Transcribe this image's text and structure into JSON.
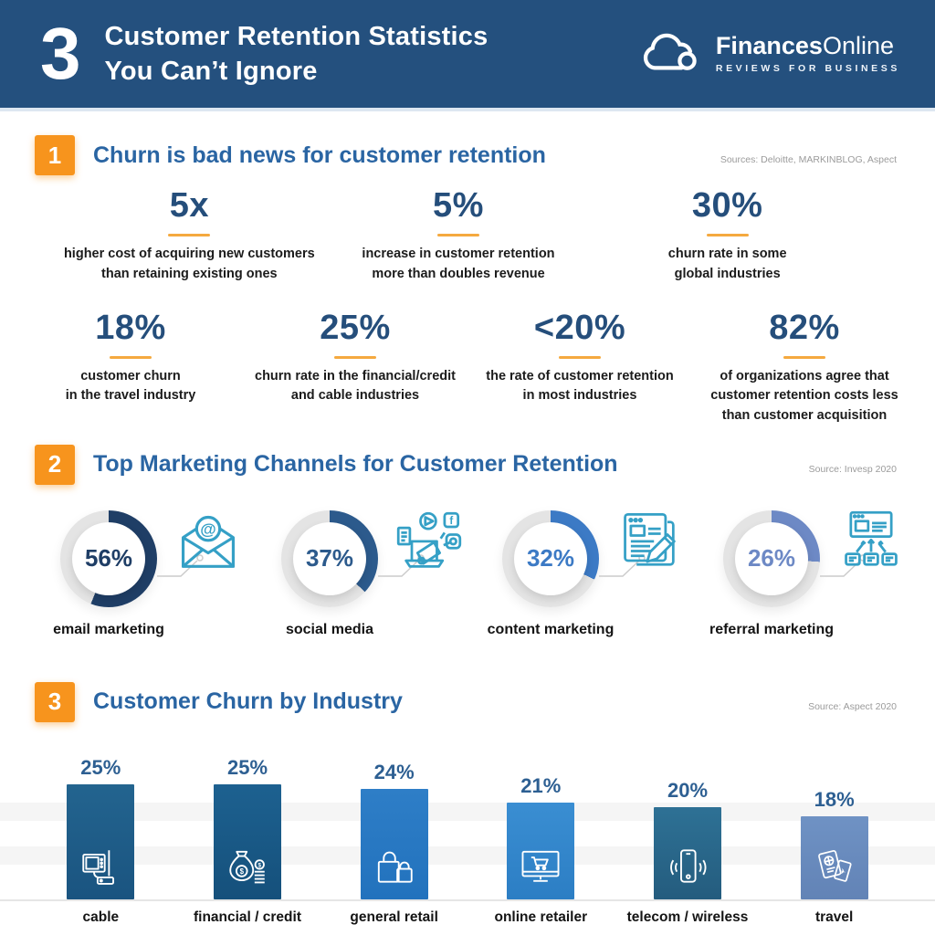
{
  "header": {
    "big_number": "3",
    "title_line1": "Customer Retention Statistics",
    "title_line2": "You Can’t Ignore",
    "logo": {
      "brand_bold": "Finances",
      "brand_light": "Online",
      "tagline": "REVIEWS FOR BUSINESS"
    },
    "bg_color": "#24507e"
  },
  "colors": {
    "accent_orange": "#f7941d",
    "underline_orange": "#f5a93f",
    "title_blue": "#2a65a3",
    "stat_navy": "#254e7b",
    "icon_teal": "#35a0c6",
    "donut_track": "#e4e4e4"
  },
  "section1": {
    "badge": "1",
    "title": "Churn is bad news for customer retention",
    "source": "Sources: Deloitte, MARKINBLOG, Aspect",
    "stats_row1": [
      {
        "value": "5x",
        "desc": [
          "higher cost of acquiring new customers",
          "than retaining existing ones"
        ]
      },
      {
        "value": "5%",
        "desc": [
          "increase in customer retention",
          "more than doubles revenue"
        ]
      },
      {
        "value": "30%",
        "desc": [
          "churn rate in some",
          "global industries"
        ]
      }
    ],
    "stats_row2": [
      {
        "value": "18%",
        "desc": [
          "customer churn",
          "in the travel industry"
        ]
      },
      {
        "value": "25%",
        "desc": [
          "churn rate in the financial/credit",
          "and cable industries"
        ]
      },
      {
        "value": "<20%",
        "desc": [
          "the rate of customer retention",
          "in most industries"
        ]
      },
      {
        "value": "82%",
        "desc": [
          "of organizations agree that",
          "customer retention costs less",
          "than customer acquisition"
        ]
      }
    ]
  },
  "section2": {
    "badge": "2",
    "title": "Top Marketing Channels for Customer Retention",
    "source": "Source: Invesp 2020",
    "channels": [
      {
        "percent": 56,
        "label": "email marketing",
        "color": "#1f3e66",
        "icon": "email-icon"
      },
      {
        "percent": 37,
        "label": "social media",
        "color": "#2c5a8c",
        "icon": "social-media-icon"
      },
      {
        "percent": 32,
        "label": "content marketing",
        "color": "#3c7ac5",
        "icon": "content-marketing-icon"
      },
      {
        "percent": 26,
        "label": "referral marketing",
        "color": "#6d89c5",
        "icon": "referral-marketing-icon"
      }
    ]
  },
  "section3": {
    "badge": "3",
    "title": "Customer Churn by Industry",
    "source": "Source: Aspect 2020",
    "bars": [
      {
        "label": "cable",
        "value": 25,
        "color_top": "#23648f",
        "color_bottom": "#1a5480",
        "icon": "cable-tv-icon"
      },
      {
        "label": "financial / credit",
        "value": 25,
        "color_top": "#1d6190",
        "color_bottom": "#15507b",
        "icon": "money-bag-icon"
      },
      {
        "label": "general retail",
        "value": 24,
        "color_top": "#2e7ec7",
        "color_bottom": "#2272bd",
        "icon": "shopping-bags-icon"
      },
      {
        "label": "online retailer",
        "value": 21,
        "color_top": "#3a8ed2",
        "color_bottom": "#2c7ec4",
        "icon": "online-shop-icon"
      },
      {
        "label": "telecom / wireless",
        "value": 20,
        "color_top": "#2e7195",
        "color_bottom": "#245c7e",
        "icon": "mobile-phone-icon"
      },
      {
        "label": "travel",
        "value": 18,
        "color_top": "#6f92c4",
        "color_bottom": "#6283b6",
        "icon": "travel-passport-icon"
      }
    ]
  },
  "chart_data": [
    {
      "type": "pie",
      "variant": "four separate donut gauges, arc starts at 12 o'clock clockwise",
      "title": "Top Marketing Channels for Customer Retention",
      "categories": [
        "email marketing",
        "social media",
        "content marketing",
        "referral marketing"
      ],
      "values": [
        56,
        37,
        32,
        26
      ],
      "unit": "%",
      "source": "Source: Invesp 2020",
      "legend_position": "labels below each donut"
    },
    {
      "type": "bar",
      "title": "Customer Churn by Industry",
      "categories": [
        "cable",
        "financial / credit",
        "general retail",
        "online retailer",
        "telecom / wireless",
        "travel"
      ],
      "values": [
        25,
        25,
        24,
        21,
        20,
        18
      ],
      "unit": "%",
      "ylim": [
        0,
        25
      ],
      "grid": "two subtle light-gray horizontal bands, baseline at bottom",
      "legend": "none",
      "data_labels": "percent above each bar",
      "source": "Source: Aspect 2020"
    }
  ]
}
